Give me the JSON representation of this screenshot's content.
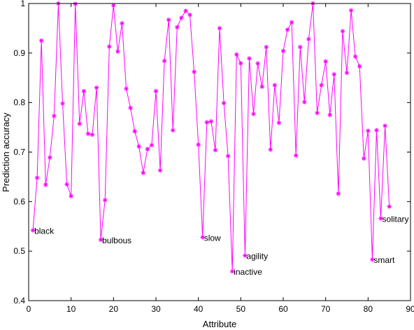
{
  "chart_data": {
    "type": "line",
    "xlabel": "Attribute",
    "ylabel": "Prediction accuracy",
    "xlim": [
      0,
      90
    ],
    "ylim": [
      0.4,
      1.0
    ],
    "xticks": [
      0,
      10,
      20,
      30,
      40,
      50,
      60,
      70,
      80,
      90
    ],
    "yticks": [
      0.4,
      0.5,
      0.6,
      0.7,
      0.8,
      0.9,
      1.0
    ],
    "ytick_labels": [
      "0.4",
      "0.5",
      "0.6",
      "0.7",
      "0.8",
      "0.9",
      "1"
    ],
    "grid": false,
    "line_color": "#ff00ff",
    "marker": "asterisk",
    "series": [
      {
        "x": [
          1,
          2,
          3,
          4,
          5,
          6,
          7,
          8,
          9,
          10,
          11,
          12,
          13,
          14,
          15,
          16,
          17,
          18,
          19,
          20,
          21,
          22,
          23,
          24,
          25,
          26,
          27,
          28,
          29,
          30,
          31,
          32,
          33,
          34,
          35,
          36,
          37,
          38,
          39,
          40,
          41,
          42,
          43,
          44,
          45,
          46,
          47,
          48,
          49,
          50,
          51,
          52,
          53,
          54,
          55,
          56,
          57,
          58,
          59,
          60,
          61,
          62,
          63,
          64,
          65,
          66,
          67,
          68,
          69,
          70,
          71,
          72,
          73,
          74,
          75,
          76,
          77,
          78,
          79,
          80,
          81,
          82,
          83,
          84,
          85
        ],
        "values": [
          0.542,
          0.648,
          0.925,
          0.634,
          0.689,
          0.773,
          1.0,
          0.798,
          0.635,
          0.611,
          0.999,
          0.757,
          0.823,
          0.737,
          0.735,
          0.83,
          0.523,
          0.603,
          0.913,
          0.996,
          0.903,
          0.96,
          0.828,
          0.789,
          0.742,
          0.711,
          0.658,
          0.706,
          0.714,
          0.823,
          0.663,
          0.884,
          0.967,
          0.744,
          0.952,
          0.971,
          0.985,
          0.977,
          0.862,
          0.715,
          0.528,
          0.76,
          0.762,
          0.704,
          0.95,
          0.799,
          0.692,
          0.459,
          0.897,
          0.879,
          0.491,
          0.889,
          0.777,
          0.879,
          0.832,
          0.912,
          0.705,
          0.835,
          0.759,
          0.904,
          0.947,
          0.962,
          0.693,
          0.912,
          0.801,
          0.928,
          1.0,
          0.779,
          0.835,
          0.883,
          0.775,
          0.857,
          0.616,
          0.944,
          0.86,
          0.986,
          0.893,
          0.873,
          0.687,
          0.743,
          0.483,
          0.744,
          0.566,
          0.753,
          0.59
        ]
      }
    ],
    "annotations": [
      {
        "text": "black",
        "x": 1,
        "y": 0.542
      },
      {
        "text": "bulbous",
        "x": 17,
        "y": 0.523
      },
      {
        "text": "slow",
        "x": 41,
        "y": 0.528
      },
      {
        "text": "inactive",
        "x": 48,
        "y": 0.459
      },
      {
        "text": "agility",
        "x": 51,
        "y": 0.491
      },
      {
        "text": "smart",
        "x": 81,
        "y": 0.483
      },
      {
        "text": "solitary",
        "x": 83,
        "y": 0.566
      }
    ]
  }
}
